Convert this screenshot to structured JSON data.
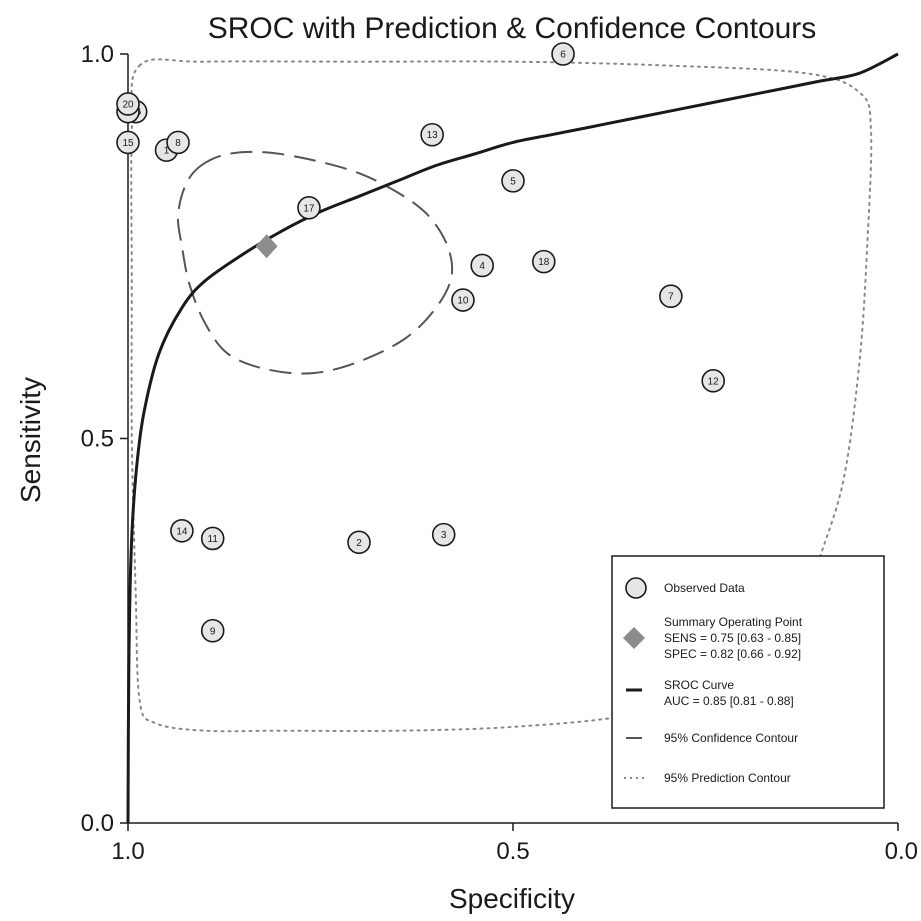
{
  "chart_data": {
    "type": "scatter",
    "title": "SROC with Prediction & Confidence Contours",
    "xlabel": "Specificity",
    "ylabel": "Sensitivity",
    "x_reversed": true,
    "xlim": [
      1.0,
      0.0
    ],
    "ylim": [
      0.0,
      1.0
    ],
    "x_ticks": [
      "1.0",
      "0.5",
      "0.0"
    ],
    "y_ticks": [
      "0.0",
      "0.5",
      "1.0"
    ],
    "grid": false,
    "legend_position": "bottom-right",
    "observed_data": [
      {
        "id": "1",
        "spec": 0.95,
        "sens": 0.875
      },
      {
        "id": "2",
        "spec": 0.7,
        "sens": 0.365
      },
      {
        "id": "3",
        "spec": 0.59,
        "sens": 0.375
      },
      {
        "id": "4",
        "spec": 0.54,
        "sens": 0.725
      },
      {
        "id": "5",
        "spec": 0.5,
        "sens": 0.835
      },
      {
        "id": "6",
        "spec": 0.435,
        "sens": 1.0
      },
      {
        "id": "7",
        "spec": 0.295,
        "sens": 0.685
      },
      {
        "id": "8",
        "spec": 0.935,
        "sens": 0.885
      },
      {
        "id": "9",
        "spec": 0.89,
        "sens": 0.25
      },
      {
        "id": "10",
        "spec": 0.565,
        "sens": 0.68
      },
      {
        "id": "11",
        "spec": 0.89,
        "sens": 0.37
      },
      {
        "id": "12",
        "spec": 0.24,
        "sens": 0.575
      },
      {
        "id": "13",
        "spec": 0.605,
        "sens": 0.895
      },
      {
        "id": "14",
        "spec": 0.93,
        "sens": 0.38
      },
      {
        "id": "15",
        "spec": 1.0,
        "sens": 0.885
      },
      {
        "id": "16",
        "spec": 0.99,
        "sens": 0.925
      },
      {
        "id": "17",
        "spec": 0.765,
        "sens": 0.8
      },
      {
        "id": "18",
        "spec": 0.46,
        "sens": 0.73
      },
      {
        "id": "19",
        "spec": 1.0,
        "sens": 0.925
      },
      {
        "id": "20",
        "spec": 1.0,
        "sens": 0.935
      }
    ],
    "summary_point": {
      "spec": 0.82,
      "sens": 0.75
    },
    "sroc_curve": [
      [
        1.0,
        0.0
      ],
      [
        0.999,
        0.2
      ],
      [
        0.996,
        0.35
      ],
      [
        0.99,
        0.45
      ],
      [
        0.98,
        0.53
      ],
      [
        0.96,
        0.61
      ],
      [
        0.93,
        0.67
      ],
      [
        0.9,
        0.705
      ],
      [
        0.85,
        0.74
      ],
      [
        0.8,
        0.77
      ],
      [
        0.75,
        0.795
      ],
      [
        0.7,
        0.815
      ],
      [
        0.65,
        0.835
      ],
      [
        0.6,
        0.855
      ],
      [
        0.55,
        0.87
      ],
      [
        0.5,
        0.885
      ],
      [
        0.45,
        0.895
      ],
      [
        0.4,
        0.905
      ],
      [
        0.35,
        0.915
      ],
      [
        0.3,
        0.925
      ],
      [
        0.25,
        0.935
      ],
      [
        0.2,
        0.945
      ],
      [
        0.15,
        0.955
      ],
      [
        0.1,
        0.965
      ],
      [
        0.05,
        0.975
      ],
      [
        0.0,
        1.0
      ]
    ],
    "confidence_contour": [
      [
        0.905,
        0.855
      ],
      [
        0.87,
        0.87
      ],
      [
        0.82,
        0.872
      ],
      [
        0.76,
        0.862
      ],
      [
        0.7,
        0.845
      ],
      [
        0.65,
        0.82
      ],
      [
        0.61,
        0.79
      ],
      [
        0.585,
        0.75
      ],
      [
        0.58,
        0.71
      ],
      [
        0.6,
        0.67
      ],
      [
        0.64,
        0.63
      ],
      [
        0.7,
        0.6
      ],
      [
        0.76,
        0.585
      ],
      [
        0.82,
        0.59
      ],
      [
        0.87,
        0.61
      ],
      [
        0.9,
        0.65
      ],
      [
        0.92,
        0.7
      ],
      [
        0.93,
        0.75
      ],
      [
        0.935,
        0.79
      ],
      [
        0.925,
        0.83
      ],
      [
        0.905,
        0.855
      ]
    ],
    "prediction_contour": [
      [
        0.985,
        0.985
      ],
      [
        0.9,
        0.99
      ],
      [
        0.7,
        0.99
      ],
      [
        0.5,
        0.99
      ],
      [
        0.3,
        0.985
      ],
      [
        0.12,
        0.975
      ],
      [
        0.05,
        0.95
      ],
      [
        0.035,
        0.9
      ],
      [
        0.04,
        0.75
      ],
      [
        0.05,
        0.6
      ],
      [
        0.07,
        0.45
      ],
      [
        0.1,
        0.35
      ],
      [
        0.14,
        0.24
      ],
      [
        0.22,
        0.175
      ],
      [
        0.35,
        0.14
      ],
      [
        0.5,
        0.125
      ],
      [
        0.65,
        0.12
      ],
      [
        0.8,
        0.12
      ],
      [
        0.9,
        0.12
      ],
      [
        0.965,
        0.13
      ],
      [
        0.985,
        0.16
      ],
      [
        0.99,
        0.3
      ],
      [
        0.995,
        0.5
      ],
      [
        0.995,
        0.7
      ],
      [
        0.995,
        0.9
      ],
      [
        0.985,
        0.985
      ]
    ],
    "legend": {
      "observed": "Observed Data",
      "summary_title": "Summary Operating Point",
      "summary_sens": "SENS = 0.75 [0.63 - 0.85]",
      "summary_spec": "SPEC = 0.82 [0.66 - 0.92]",
      "sroc_title": "SROC Curve",
      "sroc_auc": "AUC = 0.85 [0.81 - 0.88]",
      "confidence": "95% Confidence Contour",
      "prediction": "95% Prediction Contour"
    },
    "colors": {
      "marker_fill": "#e6e6e6",
      "marker_stroke": "#1a1a1a",
      "summary": "#8c8c8c",
      "curve": "#1a1a1a",
      "contour": "#555555",
      "prediction": "#888888"
    }
  }
}
